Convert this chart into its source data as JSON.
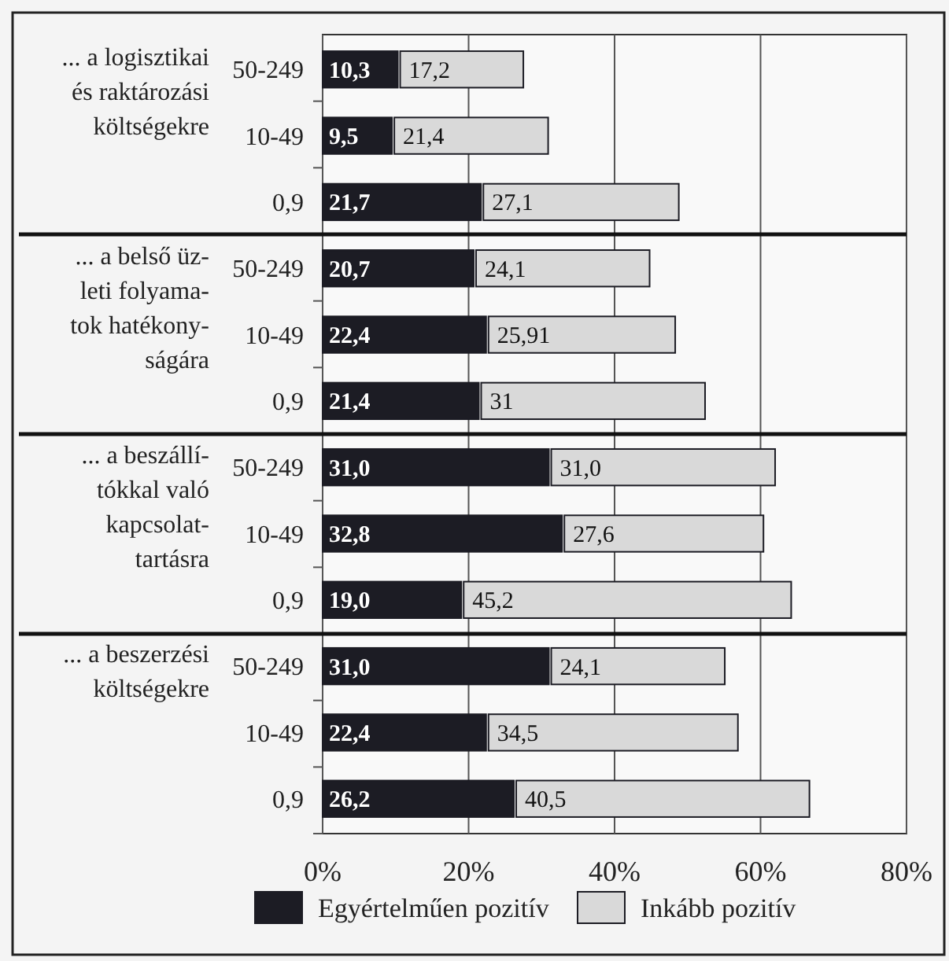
{
  "chart_data": {
    "type": "bar",
    "orientation": "horizontal",
    "stacked": true,
    "categories": [
      "50-249",
      "10-49",
      "0,9",
      "50-249",
      "10-49",
      "0,9",
      "50-249",
      "10-49",
      "0,9",
      "50-249",
      "10-49",
      "0,9"
    ],
    "series": [
      {
        "name": "Egyértelműen pozitív",
        "color": "#1c1c24",
        "values": [
          10.3,
          9.5,
          21.7,
          20.7,
          22.4,
          21.4,
          31.0,
          32.8,
          19.0,
          31.0,
          22.4,
          26.2
        ],
        "value_labels": [
          "10,3",
          "9,5",
          "21,7",
          "20,7",
          "22,4",
          "21,4",
          "31,0",
          "32,8",
          "19,0",
          "31,0",
          "22,4",
          "26,2"
        ]
      },
      {
        "name": "Inkább pozitív",
        "color": "#d9d9d9",
        "values": [
          17.2,
          21.4,
          27.1,
          24.1,
          25.91,
          31,
          31.0,
          27.6,
          45.2,
          24.1,
          34.5,
          40.5
        ],
        "value_labels": [
          "17,2",
          "21,4",
          "27,1",
          "24,1",
          "25,91",
          "31",
          "31,0",
          "27,6",
          "45,2",
          "24,1",
          "34,5",
          "40,5"
        ]
      }
    ],
    "annotations": [
      "... a logisztikai\nés raktározási\nköltségekre",
      "... a belső üz-\nleti folyama-\ntok hatékony-\nságára",
      "... a beszállí-\ntókkal való\nkapcsolat-\ntartásra",
      "... a beszerzési\nköltségekre"
    ],
    "xlim": [
      0,
      80
    ],
    "xticks": [
      {
        "value": 0,
        "label": "0%"
      },
      {
        "value": 20,
        "label": "20%"
      },
      {
        "value": 40,
        "label": "40%"
      },
      {
        "value": 60,
        "label": "60%"
      },
      {
        "value": 80,
        "label": "80%"
      }
    ],
    "grid": "x",
    "legend": "bottom"
  }
}
